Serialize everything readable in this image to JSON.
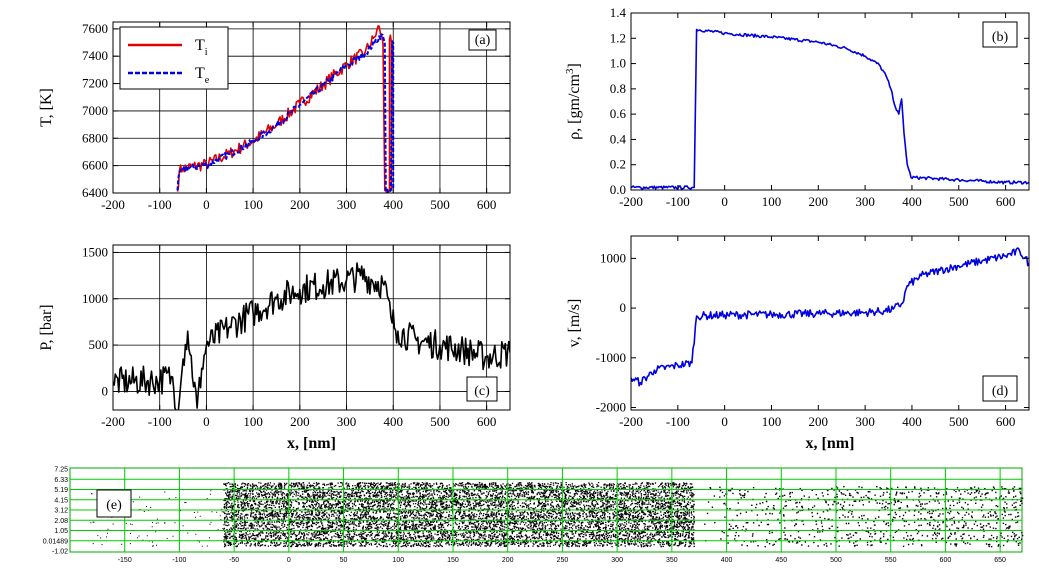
{
  "chart_data": [
    {
      "type": "line",
      "panel": "(a)",
      "ylabel": "T, [K]",
      "xlim": [
        -200,
        650
      ],
      "ylim": [
        6400,
        7650
      ],
      "xticks": [
        -200,
        -100,
        0,
        100,
        200,
        300,
        400,
        500,
        600
      ],
      "yticks": [
        6400,
        6600,
        6800,
        7000,
        7200,
        7400,
        7600
      ],
      "grid": true,
      "legend": {
        "placement": "top-left",
        "entries": [
          {
            "label": "T",
            "sub": "i",
            "color": "#e00000",
            "style": "solid"
          },
          {
            "label": "T",
            "sub": "e",
            "color": "#0000e0",
            "style": "dashed"
          }
        ]
      },
      "series": [
        {
          "name": "T_i",
          "color": "#e00000",
          "style": "solid",
          "noise": 45,
          "points": [
            [
              -62,
              6410
            ],
            [
              -58,
              6560
            ],
            [
              -50,
              6580
            ],
            [
              0,
              6610
            ],
            [
              50,
              6690
            ],
            [
              100,
              6780
            ],
            [
              150,
              6900
            ],
            [
              200,
              7050
            ],
            [
              250,
              7190
            ],
            [
              300,
              7340
            ],
            [
              340,
              7430
            ],
            [
              360,
              7540
            ],
            [
              370,
              7620
            ],
            [
              378,
              7490
            ],
            [
              382,
              6420
            ],
            [
              392,
              6420
            ],
            [
              392,
              7520
            ],
            [
              396,
              7500
            ],
            [
              396,
              6420
            ]
          ]
        },
        {
          "name": "T_e",
          "color": "#0000e0",
          "style": "dashed",
          "noise": 25,
          "points": [
            [
              -62,
              6420
            ],
            [
              -58,
              6550
            ],
            [
              -50,
              6575
            ],
            [
              0,
              6605
            ],
            [
              50,
              6685
            ],
            [
              100,
              6775
            ],
            [
              150,
              6895
            ],
            [
              200,
              7045
            ],
            [
              250,
              7185
            ],
            [
              300,
              7330
            ],
            [
              340,
              7420
            ],
            [
              360,
              7500
            ],
            [
              375,
              7560
            ],
            [
              382,
              7500
            ],
            [
              384,
              6420
            ],
            [
              395,
              6420
            ],
            [
              398,
              7510
            ],
            [
              400,
              7500
            ],
            [
              400,
              6420
            ]
          ]
        }
      ]
    },
    {
      "type": "line",
      "panel": "(b)",
      "ylabel": "ρ, [gm/cm3]",
      "ylabel_base": "ρ, [gm/cm",
      "ylabel_sup": "3",
      "ylabel_tail": "]",
      "xlim": [
        -200,
        650
      ],
      "ylim": [
        0.0,
        1.4
      ],
      "xticks": [
        -200,
        -100,
        0,
        100,
        200,
        300,
        400,
        500,
        600
      ],
      "yticks": [
        0.0,
        0.2,
        0.4,
        0.6,
        0.8,
        1.0,
        1.2,
        1.4
      ],
      "ytick_format": 1,
      "grid": false,
      "series": [
        {
          "name": "density",
          "color": "#0000e0",
          "noise": 0.012,
          "points": [
            [
              -200,
              0.02
            ],
            [
              -65,
              0.02
            ],
            [
              -60,
              1.27
            ],
            [
              0,
              1.24
            ],
            [
              100,
              1.21
            ],
            [
              200,
              1.17
            ],
            [
              260,
              1.12
            ],
            [
              300,
              1.06
            ],
            [
              330,
              0.99
            ],
            [
              345,
              0.9
            ],
            [
              355,
              0.8
            ],
            [
              365,
              0.65
            ],
            [
              372,
              0.6
            ],
            [
              378,
              0.72
            ],
            [
              383,
              0.45
            ],
            [
              390,
              0.2
            ],
            [
              398,
              0.1
            ],
            [
              450,
              0.09
            ],
            [
              500,
              0.08
            ],
            [
              550,
              0.07
            ],
            [
              600,
              0.06
            ],
            [
              650,
              0.06
            ]
          ]
        }
      ]
    },
    {
      "type": "line",
      "panel": "(c)",
      "ylabel": "P, [bar]",
      "xlabel": "x,  [nm]",
      "xlim": [
        -200,
        650
      ],
      "ylim": [
        -200,
        1580
      ],
      "xticks": [
        -200,
        -100,
        0,
        100,
        200,
        300,
        400,
        500,
        600
      ],
      "yticks": [
        0,
        500,
        1000,
        1500
      ],
      "grid": true,
      "series": [
        {
          "name": "pressure",
          "color": "#000000",
          "noise": 160,
          "points": [
            [
              -200,
              100
            ],
            [
              -100,
              120
            ],
            [
              -75,
              160
            ],
            [
              -60,
              -200
            ],
            [
              -50,
              350
            ],
            [
              -40,
              650
            ],
            [
              -20,
              -180
            ],
            [
              -10,
              250
            ],
            [
              0,
              500
            ],
            [
              50,
              700
            ],
            [
              100,
              850
            ],
            [
              150,
              1000
            ],
            [
              200,
              1100
            ],
            [
              250,
              1150
            ],
            [
              300,
              1200
            ],
            [
              330,
              1250
            ],
            [
              380,
              1150
            ],
            [
              395,
              800
            ],
            [
              410,
              650
            ],
            [
              450,
              550
            ],
            [
              500,
              500
            ],
            [
              550,
              450
            ],
            [
              600,
              370
            ],
            [
              650,
              420
            ]
          ]
        }
      ]
    },
    {
      "type": "line",
      "panel": "(d)",
      "ylabel": "v, [m/s]",
      "xlabel": "x,  [nm]",
      "xlim": [
        -200,
        650
      ],
      "ylim": [
        -2050,
        1450
      ],
      "xticks": [
        -200,
        -100,
        0,
        100,
        200,
        300,
        400,
        500,
        600
      ],
      "yticks": [
        -2000,
        -1000,
        0,
        1000
      ],
      "grid": false,
      "series": [
        {
          "name": "velocity",
          "color": "#0000e0",
          "noise": 80,
          "points": [
            [
              -200,
              -1400
            ],
            [
              -180,
              -1500
            ],
            [
              -150,
              -1250
            ],
            [
              -100,
              -1150
            ],
            [
              -70,
              -1100
            ],
            [
              -60,
              -160
            ],
            [
              0,
              -140
            ],
            [
              100,
              -130
            ],
            [
              200,
              -110
            ],
            [
              300,
              -90
            ],
            [
              340,
              -60
            ],
            [
              360,
              -20
            ],
            [
              380,
              100
            ],
            [
              390,
              450
            ],
            [
              420,
              650
            ],
            [
              460,
              760
            ],
            [
              500,
              850
            ],
            [
              550,
              950
            ],
            [
              600,
              1050
            ],
            [
              630,
              1150
            ],
            [
              650,
              900
            ]
          ]
        }
      ]
    },
    {
      "type": "scatter",
      "panel": "(e)",
      "xlim": [
        -200,
        670
      ],
      "xticks": [
        -150,
        -100,
        -50,
        0,
        50,
        100,
        150,
        200,
        250,
        300,
        350,
        400,
        450,
        500,
        550,
        600,
        650
      ],
      "ytick_labels": [
        "7.25",
        "6.33",
        "5.19",
        "4.15",
        "3.12",
        "2.08",
        "1.05",
        "0.01489",
        "-1.02"
      ],
      "grid": true,
      "grid_color": "#00cc00",
      "description_points": {
        "dense_from": -60,
        "dense_to": 370,
        "sparse_to": 670
      }
    }
  ]
}
